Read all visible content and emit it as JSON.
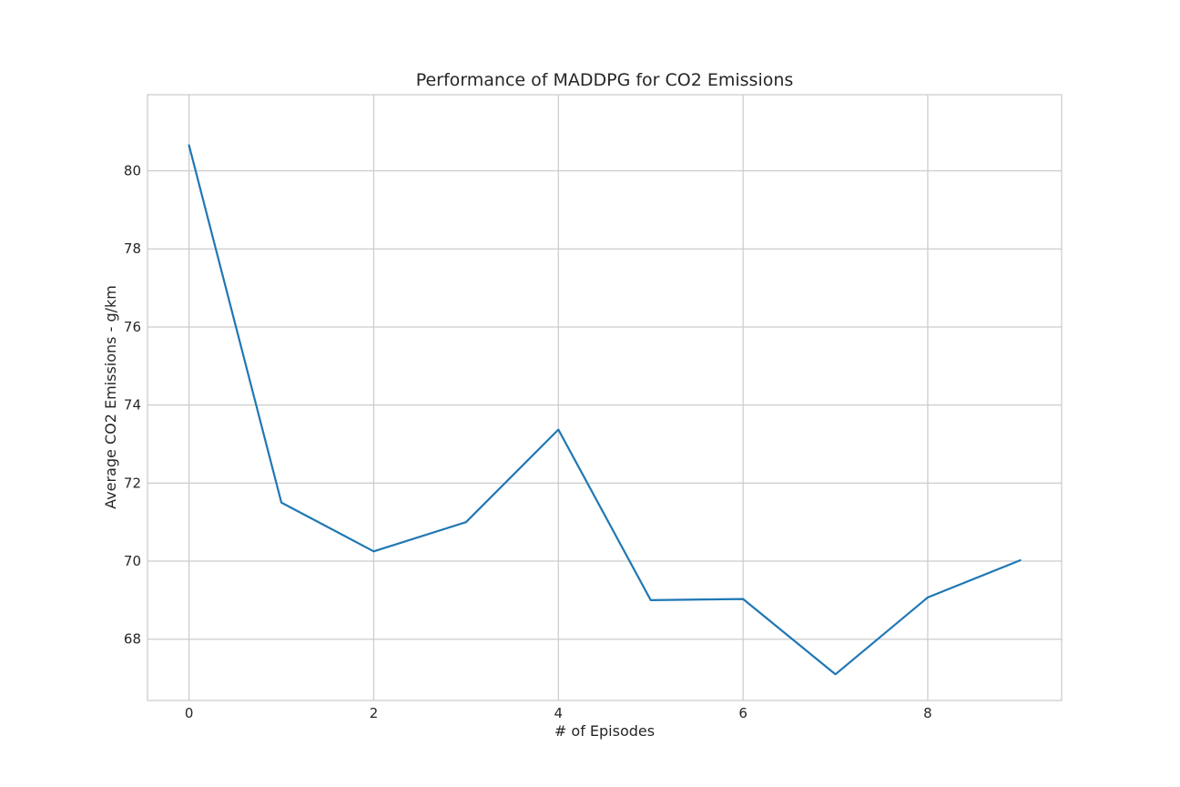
{
  "chart_data": {
    "type": "line",
    "title": "Performance of MADDPG for CO2 Emissions",
    "xlabel": "# of Episodes",
    "ylabel": "Average CO2 Emissions - g/km",
    "xlim": [
      -0.45,
      9.45
    ],
    "ylim": [
      66.43,
      81.95
    ],
    "xticks": [
      0,
      2,
      4,
      6,
      8
    ],
    "yticks": [
      68,
      70,
      72,
      74,
      76,
      78,
      80
    ],
    "grid": true,
    "series": [
      {
        "color": "#1f77b4",
        "x": [
          0,
          1,
          2,
          3,
          4,
          5,
          6,
          7,
          8,
          9
        ],
        "y": [
          80.65,
          71.5,
          70.25,
          71.0,
          73.37,
          69.0,
          69.03,
          67.1,
          69.07,
          70.02
        ]
      }
    ]
  }
}
